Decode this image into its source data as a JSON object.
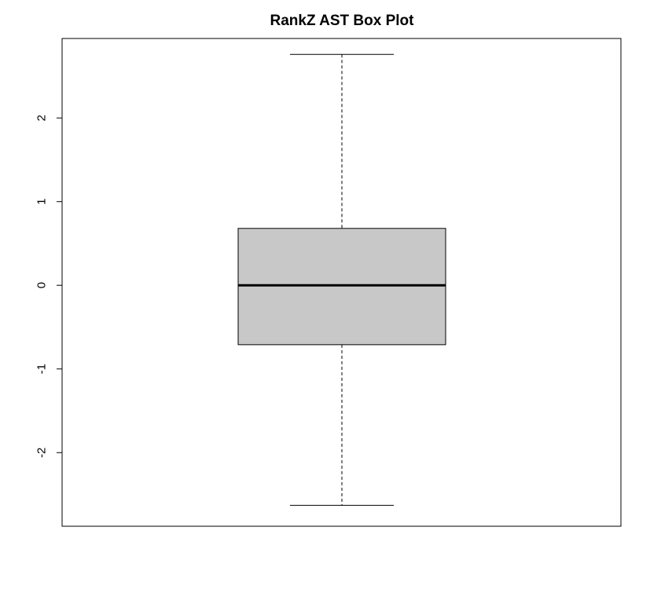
{
  "chart_data": {
    "type": "box",
    "title": "RankZ AST Box Plot",
    "xlabel": "",
    "ylabel": "",
    "ylim": [
      -2.88,
      2.95
    ],
    "yticks": [
      2,
      1,
      0,
      -1,
      -2
    ],
    "ytick_labels": [
      "2",
      "1",
      "0",
      "-1",
      "-2"
    ],
    "box": {
      "lower_whisker": -2.63,
      "q1": -0.71,
      "median": 0.0,
      "q3": 0.68,
      "upper_whisker": 2.76
    },
    "grid": false,
    "legend": "none",
    "colors": {
      "box_fill": "#c8c8c8",
      "lines": "#000000"
    }
  }
}
